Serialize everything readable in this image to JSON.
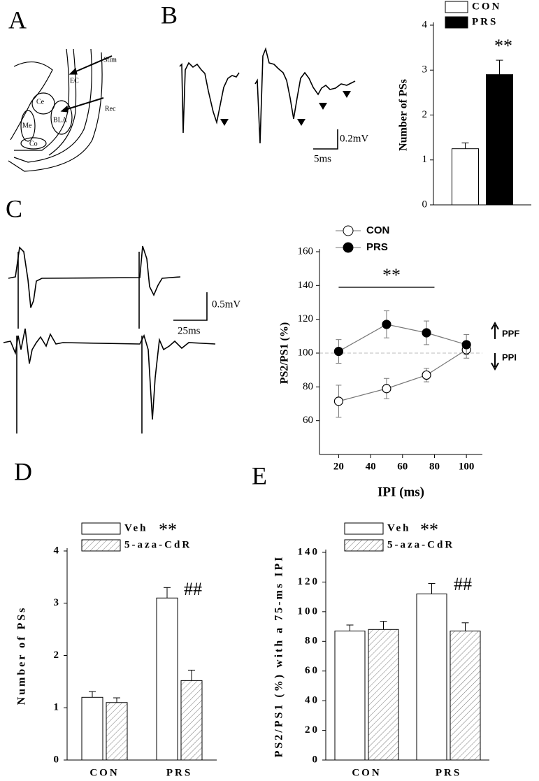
{
  "panel_labels": [
    "A",
    "B",
    "C",
    "D",
    "E"
  ],
  "diagram_labels": [
    "Stim",
    "EC",
    "Ce",
    "Rec",
    "BLA",
    "Me",
    "Co"
  ],
  "scale_bars": [
    "0.2mV",
    "5ms",
    "0.5mV",
    "25ms"
  ],
  "chart_data": [
    {
      "type": "bar",
      "y_label": "Number of PSs",
      "categories": [
        null
      ],
      "series": [
        {
          "name": "CON",
          "color": "#ffffff",
          "values": [
            1.25
          ],
          "errors": [
            0.13
          ]
        },
        {
          "name": "PRS",
          "color": "#000000",
          "values": [
            2.9
          ],
          "errors": [
            0.32
          ]
        }
      ],
      "ylim": [
        0,
        4
      ],
      "yticks": [
        0,
        1,
        2,
        3,
        4
      ],
      "annotations": [
        "**"
      ]
    },
    {
      "type": "line",
      "x_label": "IPI (ms)",
      "y_label": "PS2/PS1 (%)",
      "x": [
        20,
        50,
        75,
        100
      ],
      "series": [
        {
          "name": "CON",
          "color": "#ffffff",
          "values": [
            71.5,
            79,
            87,
            102
          ],
          "errors": [
            9.5,
            6,
            4,
            5
          ]
        },
        {
          "name": "PRS",
          "color": "#000000",
          "values": [
            101,
            117,
            112,
            105
          ],
          "errors": [
            7,
            8,
            7,
            6
          ]
        }
      ],
      "xlim": [
        8,
        110
      ],
      "xticks": [
        20,
        40,
        60,
        80,
        100
      ],
      "ylim": [
        40,
        160
      ],
      "yticks": [
        60,
        80,
        100,
        120,
        140,
        160
      ],
      "reference_line": 100,
      "significance_line": {
        "x": [
          20,
          80
        ],
        "y": 139
      },
      "annotations": [
        "**",
        "PPF",
        "PPI"
      ]
    },
    {
      "type": "bar",
      "y_label": "Number of PSs",
      "categories": [
        "CON",
        "PRS"
      ],
      "series": [
        {
          "name": "Veh",
          "color": "#ffffff",
          "values": [
            1.2,
            3.1
          ],
          "errors": [
            0.11,
            0.2
          ]
        },
        {
          "name": "5-aza-CdR",
          "color": "#ffffff",
          "hatch": true,
          "values": [
            1.1,
            1.52
          ],
          "errors": [
            0.09,
            0.2
          ]
        }
      ],
      "ylim": [
        0,
        4
      ],
      "yticks": [
        0,
        1,
        2,
        3,
        4
      ],
      "annotations": [
        "**",
        "##"
      ]
    },
    {
      "type": "bar",
      "y_label": "PS2/PS1 (%) with a 75-ms IPI",
      "categories": [
        "CON",
        "PRS"
      ],
      "series": [
        {
          "name": "Veh",
          "color": "#ffffff",
          "values": [
            87,
            112
          ],
          "errors": [
            4,
            7
          ]
        },
        {
          "name": "5-aza-CdR",
          "color": "#ffffff",
          "hatch": true,
          "values": [
            88,
            87
          ],
          "errors": [
            5.5,
            5.5
          ]
        }
      ],
      "ylim": [
        0,
        140
      ],
      "yticks": [
        0,
        20,
        40,
        60,
        80,
        100,
        120,
        140
      ],
      "annotations": [
        "**",
        "##"
      ]
    }
  ]
}
